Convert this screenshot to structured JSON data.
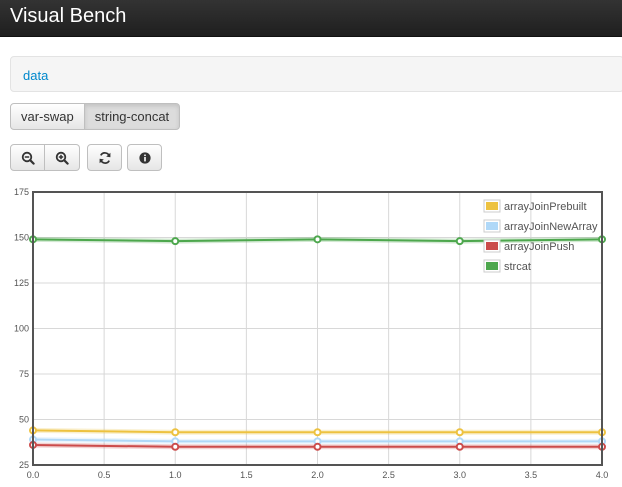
{
  "app": {
    "title": "Visual Bench"
  },
  "breadcrumb": {
    "link": "data"
  },
  "tabs": [
    {
      "label": "var-swap",
      "active": false
    },
    {
      "label": "string-concat",
      "active": true
    }
  ],
  "toolbar": {
    "zoom_out": "zoom-out-icon",
    "zoom_in": "zoom-in-icon",
    "refresh": "refresh-icon",
    "info": "info-icon"
  },
  "chart_data": {
    "type": "line",
    "x": [
      0,
      1,
      2,
      3,
      4
    ],
    "xlim": [
      0,
      4
    ],
    "ylim": [
      25,
      175
    ],
    "xticks": [
      "0.0",
      "0.5",
      "1.0",
      "1.5",
      "2.0",
      "2.5",
      "3.0",
      "3.5",
      "4.0"
    ],
    "yticks": [
      "25",
      "50",
      "75",
      "100",
      "125",
      "150",
      "175"
    ],
    "grid": true,
    "legend_position": "top-right",
    "series": [
      {
        "name": "arrayJoinPrebuilt",
        "color": "#edc240",
        "values": [
          44,
          43,
          43,
          43,
          43
        ]
      },
      {
        "name": "arrayJoinNewArray",
        "color": "#afd8f8",
        "values": [
          39,
          38,
          38,
          38,
          38
        ]
      },
      {
        "name": "arrayJoinPush",
        "color": "#cb4b4b",
        "values": [
          36,
          35,
          35,
          35,
          35
        ]
      },
      {
        "name": "strcat",
        "color": "#4da74d",
        "values": [
          149,
          148,
          149,
          148,
          149
        ]
      }
    ]
  }
}
